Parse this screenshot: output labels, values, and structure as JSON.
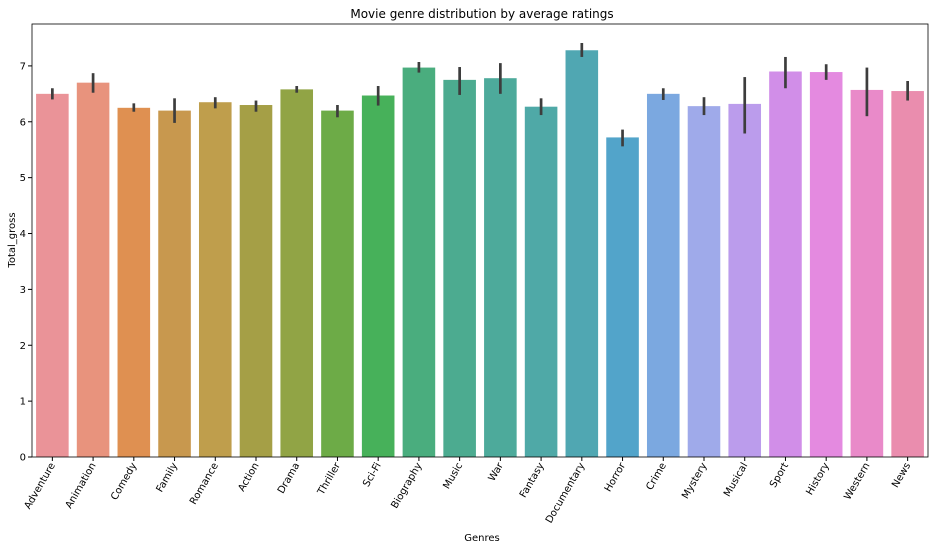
{
  "chart_data": {
    "type": "bar",
    "title": "Movie genre distribution by average ratings",
    "xlabel": "Genres",
    "ylabel": "Total_gross",
    "ylim": [
      0,
      7.75
    ],
    "yticks": [
      0,
      1,
      2,
      3,
      4,
      5,
      6,
      7
    ],
    "grid": false,
    "categories": [
      "Adventure",
      "Animation",
      "Comedy",
      "Family",
      "Romance",
      "Action",
      "Drama",
      "Thriller",
      "Sci-Fi",
      "Biography",
      "Music",
      "War",
      "Fantasy",
      "Documentary",
      "Horror",
      "Crime",
      "Mystery",
      "Musical",
      "Sport",
      "History",
      "Western",
      "News"
    ],
    "values": [
      6.5,
      6.7,
      6.25,
      6.2,
      6.35,
      6.3,
      6.58,
      6.2,
      6.47,
      6.97,
      6.75,
      6.78,
      6.27,
      7.28,
      5.72,
      6.5,
      6.28,
      6.32,
      6.9,
      6.89,
      6.57,
      6.55
    ],
    "error_low": [
      6.4,
      6.52,
      6.18,
      5.98,
      6.24,
      6.18,
      6.52,
      6.08,
      6.29,
      6.88,
      6.48,
      6.5,
      6.12,
      7.16,
      5.56,
      6.39,
      6.12,
      5.79,
      6.6,
      6.75,
      6.1,
      6.38
    ],
    "error_high": [
      6.6,
      6.87,
      6.33,
      6.42,
      6.44,
      6.38,
      6.64,
      6.3,
      6.64,
      7.07,
      6.98,
      7.05,
      6.42,
      7.41,
      5.86,
      6.6,
      6.44,
      6.8,
      7.16,
      7.03,
      6.97,
      6.73
    ],
    "colors": [
      "#ea9398",
      "#e8937d",
      "#df9051",
      "#c8984e",
      "#bf9e4c",
      "#a59f46",
      "#91a445",
      "#6dab47",
      "#47b15a",
      "#4aad7e",
      "#4cab90",
      "#4daa9b",
      "#4fa9a7",
      "#50a7b2",
      "#52a4ca",
      "#7ba8e0",
      "#9faaea",
      "#bb9cec",
      "#d18ee8",
      "#e48ae0",
      "#e98ac9",
      "#ea8dae"
    ]
  }
}
